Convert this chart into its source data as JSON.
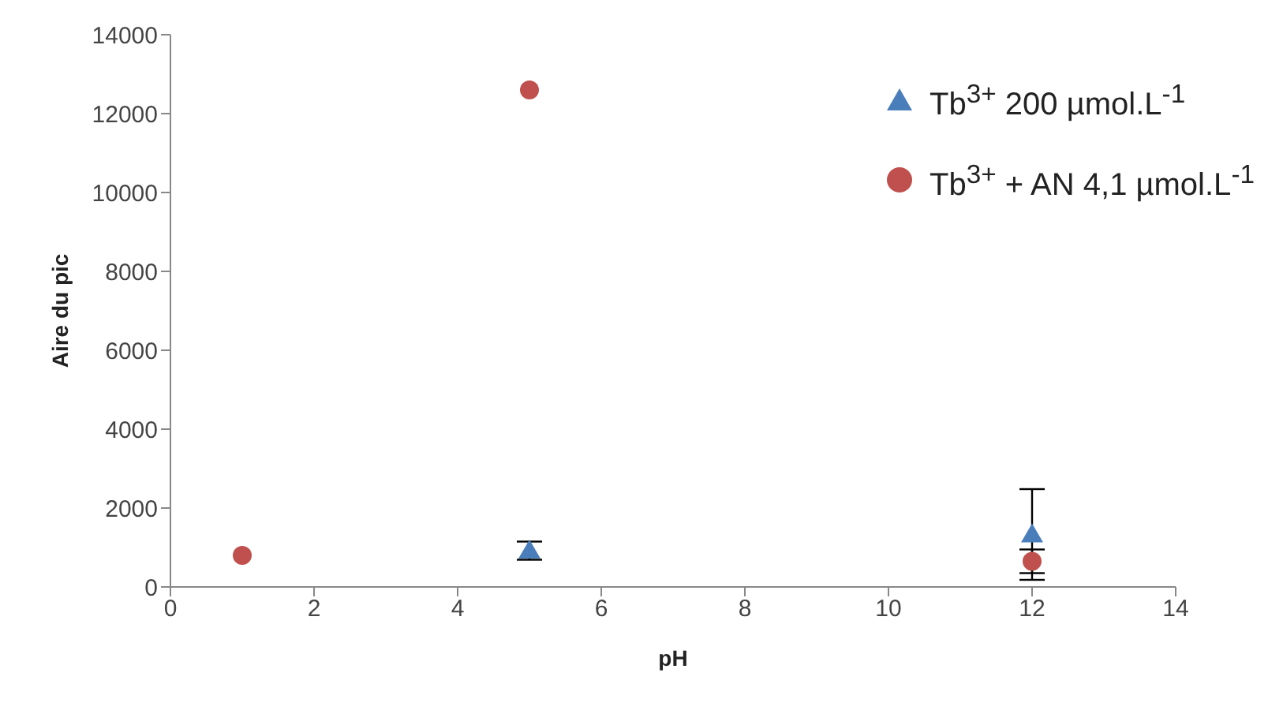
{
  "chart_data": {
    "type": "scatter",
    "xlabel": "pH",
    "ylabel": "Aire du pic",
    "x": [
      1,
      5,
      12
    ],
    "xlim": [
      0,
      14
    ],
    "xticks": [
      0,
      2,
      4,
      6,
      8,
      10,
      12,
      14
    ],
    "ylim": [
      0,
      14000
    ],
    "yticks": [
      0,
      2000,
      4000,
      6000,
      8000,
      10000,
      12000,
      14000
    ],
    "grid": false,
    "legend": "top right",
    "series": [
      {
        "name": "Tb$^{3+}$ 200 µmol.L$^{-1}$",
        "color": "#4a7ebb",
        "marker": "triangle",
        "values": [
          null,
          920,
          1330
        ],
        "errors": [
          null,
          230,
          1150
        ]
      },
      {
        "name": "Tb$^{3+}$ + AN 4,1 µmol.L$^{-1}$",
        "color": "#c0504d",
        "marker": "circle",
        "values": [
          800,
          12600,
          650
        ],
        "errors": [
          null,
          null,
          300
        ]
      }
    ]
  }
}
